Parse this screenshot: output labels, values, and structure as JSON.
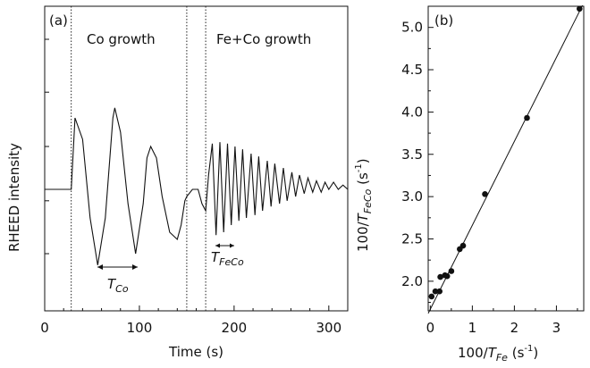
{
  "chart_data": [
    {
      "panel": "(a)",
      "type": "line",
      "title": "",
      "xlabel": "Time (s)",
      "ylabel": "RHEED intensity",
      "xlim": [
        0,
        320
      ],
      "x_ticks": [
        0,
        100,
        200,
        300
      ],
      "y_ticks_labeled": false,
      "grid": false,
      "legend": "none",
      "annotations": [
        "Co growth",
        "Fe+Co growth",
        "T_Co",
        "T_FeCo"
      ],
      "markers": {
        "dotted_vertical_lines_x": [
          28,
          150,
          170
        ]
      },
      "series": [
        {
          "x": [
            0,
            10,
            20,
            28,
            32,
            40,
            48,
            56,
            64,
            72,
            74,
            80,
            88,
            96,
            104,
            108,
            112,
            118,
            124,
            132,
            140,
            144,
            148,
            150,
            156,
            162,
            166,
            170,
            173,
            177,
            181,
            185,
            189,
            193,
            197,
            201,
            205,
            209,
            213,
            218,
            222,
            226,
            230,
            235,
            239,
            243,
            248,
            252,
            256,
            261,
            265,
            269,
            274,
            278,
            283,
            287,
            292,
            296,
            300,
            305,
            310,
            315,
            320
          ],
          "y": [
            0.0,
            0.0,
            0.0,
            0.0,
            0.5,
            0.35,
            -0.2,
            -0.53,
            -0.2,
            0.5,
            0.57,
            0.4,
            -0.1,
            -0.45,
            -0.1,
            0.22,
            0.3,
            0.22,
            -0.05,
            -0.3,
            -0.35,
            -0.25,
            -0.08,
            -0.05,
            0.0,
            0.0,
            -0.1,
            -0.15,
            0.1,
            0.32,
            -0.32,
            0.33,
            -0.3,
            0.32,
            -0.25,
            0.3,
            -0.22,
            0.28,
            -0.2,
            0.25,
            -0.18,
            0.23,
            -0.15,
            0.2,
            -0.12,
            0.18,
            -0.1,
            0.15,
            -0.08,
            0.12,
            -0.05,
            0.1,
            -0.03,
            0.08,
            -0.02,
            0.06,
            -0.02,
            0.05,
            0.0,
            0.05,
            0.0,
            0.03,
            0.0
          ]
        }
      ]
    },
    {
      "panel": "(b)",
      "type": "scatter",
      "title": "",
      "xlabel": "100/T_Fe (s^-1)",
      "ylabel": "100/T_FeCo (s^-1)",
      "xlim": [
        -0.05,
        3.65
      ],
      "ylim": [
        1.65,
        5.25
      ],
      "x_ticks": [
        0,
        1,
        2,
        3
      ],
      "y_ticks": [
        2.0,
        2.5,
        3.0,
        3.5,
        4.0,
        4.5,
        5.0
      ],
      "grid": false,
      "legend": "none",
      "points": [
        {
          "x": 0.03,
          "y": 1.82
        },
        {
          "x": 0.12,
          "y": 1.88
        },
        {
          "x": 0.22,
          "y": 1.88
        },
        {
          "x": 0.24,
          "y": 2.05
        },
        {
          "x": 0.35,
          "y": 2.07
        },
        {
          "x": 0.4,
          "y": 2.06
        },
        {
          "x": 0.5,
          "y": 2.12
        },
        {
          "x": 0.7,
          "y": 2.38
        },
        {
          "x": 0.78,
          "y": 2.42
        },
        {
          "x": 1.3,
          "y": 3.03
        },
        {
          "x": 2.3,
          "y": 3.93
        },
        {
          "x": 3.55,
          "y": 5.22
        }
      ],
      "fit_line": {
        "x": [
          -0.05,
          3.62
        ],
        "y": [
          1.62,
          5.26
        ]
      }
    }
  ],
  "labels": {
    "a_panel": "(a)",
    "a_co": "Co growth",
    "a_feco": "Fe+Co growth",
    "a_xlabel": "Time (s)",
    "a_ylabel": "RHEED intensity",
    "tco_main": "T",
    "tco_sub": "Co",
    "tfeco_main": "T",
    "tfeco_sub": "FeCo",
    "b_panel": "(b)",
    "b_xl_pre": "100/",
    "b_xl_t": "T",
    "b_xl_sub": "Fe",
    "b_xl_unit": " (s",
    "b_xl_exp": "-1",
    "b_xl_close": ")",
    "b_yl_pre": "100/",
    "b_yl_t": "T",
    "b_yl_sub": "FeCo",
    "b_yl_unit": " (s",
    "b_yl_exp": "-1",
    "b_yl_close": ")"
  }
}
